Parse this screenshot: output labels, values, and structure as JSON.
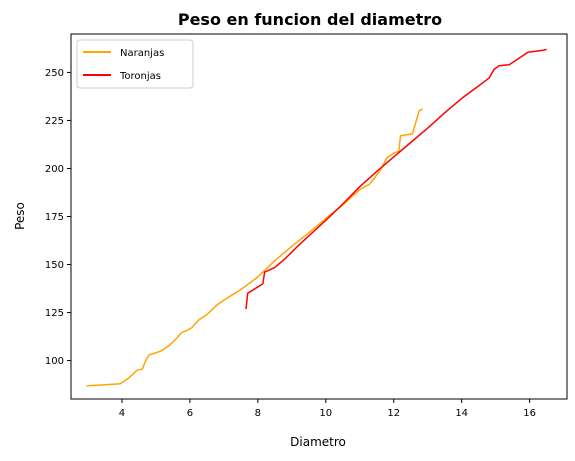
{
  "chart_data": {
    "type": "line",
    "title": "Peso en funcion del diametro",
    "xlabel": "Diametro",
    "ylabel": "Peso",
    "xlim": [
      2.5,
      17.1
    ],
    "ylim": [
      80,
      270
    ],
    "xticks": [
      4,
      6,
      8,
      10,
      12,
      14,
      16
    ],
    "yticks": [
      100,
      125,
      150,
      175,
      200,
      225,
      250
    ],
    "grid": false,
    "legend_position": "top-left",
    "series": [
      {
        "name": "Naranjas",
        "color": "#ffa500",
        "points": [
          [
            2.96,
            86.8
          ],
          [
            3.5,
            87.4
          ],
          [
            3.95,
            87.9
          ],
          [
            4.2,
            91.0
          ],
          [
            4.45,
            95.0
          ],
          [
            4.6,
            95.5
          ],
          [
            4.7,
            100.0
          ],
          [
            4.8,
            103.0
          ],
          [
            5.0,
            104.0
          ],
          [
            5.2,
            105.5
          ],
          [
            5.4,
            108.0
          ],
          [
            5.6,
            111.5
          ],
          [
            5.75,
            114.5
          ],
          [
            5.95,
            116.0
          ],
          [
            6.05,
            117.0
          ],
          [
            6.25,
            121.0
          ],
          [
            6.5,
            124.0
          ],
          [
            6.8,
            129.0
          ],
          [
            7.0,
            131.5
          ],
          [
            7.5,
            137.0
          ],
          [
            8.0,
            143.5
          ],
          [
            8.5,
            152.0
          ],
          [
            9.0,
            159.5
          ],
          [
            9.5,
            166.5
          ],
          [
            10.0,
            174.0
          ],
          [
            10.5,
            181.0
          ],
          [
            11.0,
            189.0
          ],
          [
            11.3,
            192.0
          ],
          [
            11.6,
            199.0
          ],
          [
            11.8,
            205.5
          ],
          [
            12.0,
            208.0
          ],
          [
            12.15,
            209.0
          ],
          [
            12.2,
            217.0
          ],
          [
            12.55,
            218.0
          ],
          [
            12.75,
            230.0
          ],
          [
            12.85,
            231.0
          ]
        ]
      },
      {
        "name": "Toronjas",
        "color": "#ff0000",
        "points": [
          [
            7.65,
            126.8
          ],
          [
            7.7,
            135.0
          ],
          [
            8.15,
            140.0
          ],
          [
            8.2,
            146.0
          ],
          [
            8.5,
            148.5
          ],
          [
            8.8,
            153.0
          ],
          [
            9.2,
            160.0
          ],
          [
            9.6,
            166.5
          ],
          [
            10.0,
            173.0
          ],
          [
            10.5,
            181.5
          ],
          [
            11.0,
            190.5
          ],
          [
            11.5,
            198.5
          ],
          [
            12.0,
            206.0
          ],
          [
            12.5,
            213.5
          ],
          [
            13.0,
            221.0
          ],
          [
            13.5,
            229.0
          ],
          [
            14.0,
            236.5
          ],
          [
            14.5,
            243.0
          ],
          [
            14.8,
            247.0
          ],
          [
            14.95,
            251.5
          ],
          [
            15.1,
            253.5
          ],
          [
            15.4,
            254.0
          ],
          [
            15.7,
            257.5
          ],
          [
            15.95,
            260.5
          ],
          [
            16.4,
            261.5
          ],
          [
            16.5,
            262.0
          ]
        ]
      }
    ]
  }
}
